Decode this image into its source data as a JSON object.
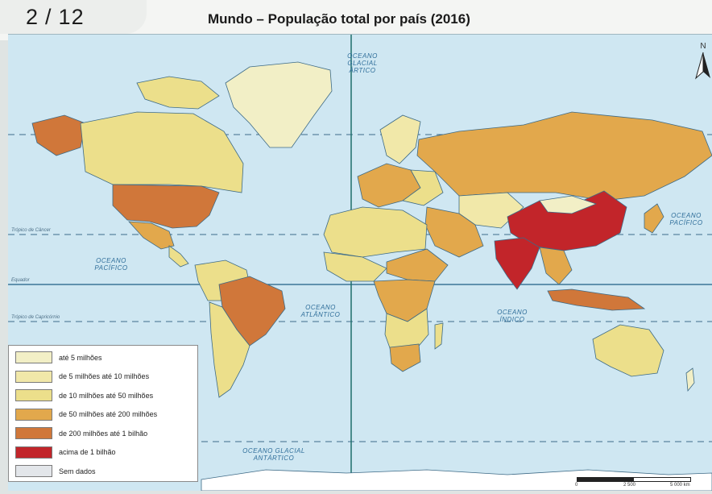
{
  "header": {
    "page_current": "2",
    "page_separator": "/",
    "page_total": "12"
  },
  "map": {
    "title": "Mundo – População total por país (2016)",
    "north_label": "N",
    "oceans": {
      "arctic": "OCEANO GLACIAL ÁRTICO",
      "pacific_north": "OCEANO PACÍFICO",
      "pacific_east": "OCEANO PACÍFICO",
      "atlantic": "OCEANO ATLÂNTICO",
      "indian": "OCEANO ÍNDICO",
      "antarctic": "OCEANO GLACIAL ANTÁRTICO"
    },
    "lines": {
      "cancer": "Trópico de Câncer",
      "equator": "Equador",
      "capricorn": "Trópico de Capricórnio"
    },
    "scale": {
      "ticks": [
        "0",
        "2 500",
        "5 000 km"
      ]
    }
  },
  "legend": {
    "items": [
      {
        "label": "até 5 milhões",
        "color": "#f2efc6"
      },
      {
        "label": "de 5 milhões até 10 milhões",
        "color": "#f1e8a9"
      },
      {
        "label": "de 10 milhões até 50 milhões",
        "color": "#ecdf8b"
      },
      {
        "label": "de 50 milhões até 200 milhões",
        "color": "#e2a84c"
      },
      {
        "label": "de 200 milhões até 1 bilhão",
        "color": "#d0773a"
      },
      {
        "label": "acima de 1 bilhão",
        "color": "#c2252a"
      },
      {
        "label": "Sem dados",
        "color": "#e3e6ea"
      }
    ]
  }
}
